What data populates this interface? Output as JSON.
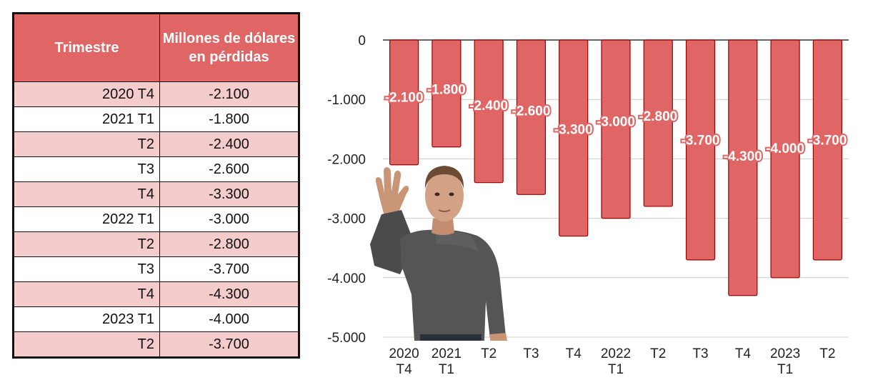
{
  "table": {
    "headers": [
      "Trimestre",
      "Millones de dólares en pérdidas"
    ],
    "rows": [
      [
        "2020 T4",
        "-2.100"
      ],
      [
        "2021 T1",
        "-1.800"
      ],
      [
        "T2",
        "-2.400"
      ],
      [
        "T3",
        "-2.600"
      ],
      [
        "T4",
        "-3.300"
      ],
      [
        "2022 T1",
        "-3.000"
      ],
      [
        "T2",
        "-2.800"
      ],
      [
        "T3",
        "-3.700"
      ],
      [
        "T4",
        "-4.300"
      ],
      [
        "2023 T1",
        "-4.000"
      ],
      [
        "T2",
        "-3.700"
      ]
    ]
  },
  "chart_data": {
    "type": "bar",
    "title": "",
    "xlabel": "",
    "ylabel": "",
    "categories": [
      [
        "2020",
        "T4"
      ],
      [
        "2021",
        "T1"
      ],
      [
        "T2"
      ],
      [
        "T3"
      ],
      [
        "T4"
      ],
      [
        "2022",
        "T1"
      ],
      [
        "T2"
      ],
      [
        "T3"
      ],
      [
        "T4"
      ],
      [
        "2023",
        "T1"
      ],
      [
        "T2"
      ]
    ],
    "values": [
      -2100,
      -1800,
      -2400,
      -2600,
      -3300,
      -3000,
      -2800,
      -3700,
      -4300,
      -4000,
      -3700
    ],
    "data_labels": [
      "-2.100",
      "-1.800",
      "-2.400",
      "-2.600",
      "-3.300",
      "-3.000",
      "-2.800",
      "-3.700",
      "-4.300",
      "-4.000",
      "-3.700"
    ],
    "ylim": [
      -5000,
      0
    ],
    "yticks": [
      0,
      -1000,
      -2000,
      -3000,
      -4000,
      -5000
    ],
    "ytick_labels": [
      "0",
      "-1.000",
      "-2.000",
      "-3.000",
      "-4.000",
      "-5.000"
    ],
    "grid": true,
    "bar_color": "#e06666",
    "bar_edge_color": "#990000"
  },
  "avatar": {
    "icon": "waving-person-avatar-icon"
  }
}
